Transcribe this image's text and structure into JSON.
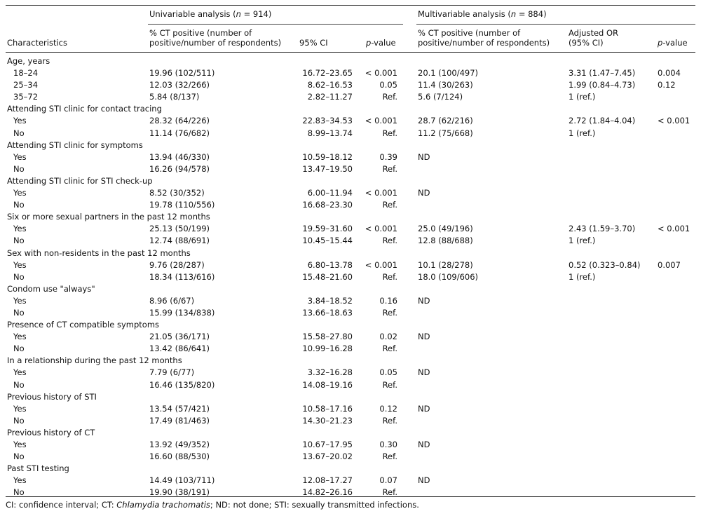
{
  "table": {
    "header": {
      "univariable_prefix": "Univariable analysis (",
      "univariable_n": "n",
      "univariable_suffix": " = 914)",
      "multivariable_prefix": "Multivariable analysis (",
      "multivariable_n": "n",
      "multivariable_suffix": " = 884)",
      "characteristics": "Characteristics",
      "u_pct_line1": "% CT positive (number of",
      "u_pct_line2": "positive/number of respondents)",
      "u_ci": "95% CI",
      "u_p_italic": "p",
      "u_p_rest": "-value",
      "m_pct_line1": "% CT positive (number of",
      "m_pct_line2": "positive/number of respondents)",
      "m_or_line1": "Adjusted OR",
      "m_or_line2": "(95% CI)",
      "m_p_italic": "p",
      "m_p_rest": "-value"
    },
    "rows": [
      {
        "label": "Age, years",
        "group": true
      },
      {
        "label": "18–24",
        "u_pct": "19.96 (102/511)",
        "u_ci": "16.72–23.65",
        "u_p": "< 0.001",
        "m_pct": "20.1 (100/497)",
        "m_or": "3.31 (1.47–7.45)",
        "m_p": "0.004"
      },
      {
        "label": "25–34",
        "u_pct": "12.03 (32/266)",
        "u_ci": "8.62–16.53",
        "u_p": "0.05",
        "m_pct": "11.4 (30/263)",
        "m_or": "1.99 (0.84–4.73)",
        "m_p": "0.12"
      },
      {
        "label": "35–72",
        "u_pct": "5.84 (8/137)",
        "u_ci": "2.82–11.27",
        "u_p": "Ref.",
        "m_pct": "5.6 (7/124)",
        "m_or": "1 (ref.)",
        "m_p": ""
      },
      {
        "label": "Attending STI clinic for contact tracing",
        "group": true
      },
      {
        "label": "Yes",
        "u_pct": "28.32 (64/226)",
        "u_ci": "22.83–34.53",
        "u_p": "< 0.001",
        "m_pct": "28.7 (62/216)",
        "m_or": "2.72 (1.84–4.04)",
        "m_p": "< 0.001"
      },
      {
        "label": "No",
        "u_pct": "11.14 (76/682)",
        "u_ci": "8.99–13.74",
        "u_p": "Ref.",
        "m_pct": "11.2 (75/668)",
        "m_or": "1 (ref.)",
        "m_p": ""
      },
      {
        "label": "Attending STI clinic for symptoms",
        "group": true
      },
      {
        "label": "Yes",
        "u_pct": "13.94 (46/330)",
        "u_ci": "10.59–18.12",
        "u_p": "0.39",
        "m_pct": "ND",
        "m_or": "",
        "m_p": ""
      },
      {
        "label": "No",
        "u_pct": "16.26 (94/578)",
        "u_ci": "13.47–19.50",
        "u_p": "Ref.",
        "m_pct": "",
        "m_or": "",
        "m_p": ""
      },
      {
        "label": "Attending STI clinic for STI check-up",
        "group": true
      },
      {
        "label": "Yes",
        "u_pct": "8.52 (30/352)",
        "u_ci": "6.00–11.94",
        "u_p": "< 0.001",
        "m_pct": "ND",
        "m_or": "",
        "m_p": ""
      },
      {
        "label": "No",
        "u_pct": "19.78 (110/556)",
        "u_ci": "16.68–23.30",
        "u_p": "Ref.",
        "m_pct": "",
        "m_or": "",
        "m_p": ""
      },
      {
        "label": "Six or more sexual partners in the past 12 months",
        "group": true
      },
      {
        "label": "Yes",
        "u_pct": "25.13 (50/199)",
        "u_ci": "19.59–31.60",
        "u_p": "< 0.001",
        "m_pct": "25.0 (49/196)",
        "m_or": "2.43 (1.59–3.70)",
        "m_p": "< 0.001"
      },
      {
        "label": "No",
        "u_pct": "12.74 (88/691)",
        "u_ci": "10.45–15.44",
        "u_p": "Ref.",
        "m_pct": "12.8 (88/688)",
        "m_or": "1 (ref.)",
        "m_p": ""
      },
      {
        "label": "Sex with non-residents in the past 12 months",
        "group": true
      },
      {
        "label": "Yes",
        "u_pct": "9.76 (28/287)",
        "u_ci": "6.80–13.78",
        "u_p": "< 0.001",
        "m_pct": "10.1 (28/278)",
        "m_or": "0.52 (0.323–0.84)",
        "m_p": "0.007"
      },
      {
        "label": "No",
        "u_pct": "18.34 (113/616)",
        "u_ci": "15.48–21.60",
        "u_p": "Ref.",
        "m_pct": "18.0 (109/606)",
        "m_or": "1 (ref.)",
        "m_p": ""
      },
      {
        "label": "Condom use \"always\"",
        "group": true
      },
      {
        "label": "Yes",
        "u_pct": "8.96 (6/67)",
        "u_ci": "3.84–18.52",
        "u_p": "0.16",
        "m_pct": "ND",
        "m_or": "",
        "m_p": ""
      },
      {
        "label": "No",
        "u_pct": "15.99 (134/838)",
        "u_ci": "13.66–18.63",
        "u_p": "Ref.",
        "m_pct": "",
        "m_or": "",
        "m_p": ""
      },
      {
        "label": "Presence of CT compatible symptoms",
        "group": true
      },
      {
        "label": "Yes",
        "u_pct": "21.05 (36/171)",
        "u_ci": "15.58–27.80",
        "u_p": "0.02",
        "m_pct": "ND",
        "m_or": "",
        "m_p": ""
      },
      {
        "label": "No",
        "u_pct": "13.42 (86/641)",
        "u_ci": "10.99–16.28",
        "u_p": "Ref.",
        "m_pct": "",
        "m_or": "",
        "m_p": ""
      },
      {
        "label": "In a relationship during the past 12 months",
        "group": true
      },
      {
        "label": "Yes",
        "u_pct": "7.79 (6/77)",
        "u_ci": "3.32–16.28",
        "u_p": "0.05",
        "m_pct": "ND",
        "m_or": "",
        "m_p": ""
      },
      {
        "label": "No",
        "u_pct": "16.46 (135/820)",
        "u_ci": "14.08–19.16",
        "u_p": "Ref.",
        "m_pct": "",
        "m_or": "",
        "m_p": ""
      },
      {
        "label": "Previous history of STI",
        "group": true
      },
      {
        "label": "Yes",
        "u_pct": "13.54 (57/421)",
        "u_ci": "10.58–17.16",
        "u_p": "0.12",
        "m_pct": "ND",
        "m_or": "",
        "m_p": ""
      },
      {
        "label": "No",
        "u_pct": "17.49 (81/463)",
        "u_ci": "14.30–21.23",
        "u_p": "Ref.",
        "m_pct": "",
        "m_or": "",
        "m_p": ""
      },
      {
        "label": "Previous history of CT",
        "group": true
      },
      {
        "label": "Yes",
        "u_pct": "13.92 (49/352)",
        "u_ci": "10.67–17.95",
        "u_p": "0.30",
        "m_pct": "ND",
        "m_or": "",
        "m_p": ""
      },
      {
        "label": "No",
        "u_pct": "16.60 (88/530)",
        "u_ci": "13.67–20.02",
        "u_p": "Ref.",
        "m_pct": "",
        "m_or": "",
        "m_p": ""
      },
      {
        "label": "Past STI testing",
        "group": true
      },
      {
        "label": "Yes",
        "u_pct": "14.49 (103/711)",
        "u_ci": "12.08–17.27",
        "u_p": "0.07",
        "m_pct": "ND",
        "m_or": "",
        "m_p": ""
      },
      {
        "label": "No",
        "u_pct": "19.90 (38/191)",
        "u_ci": "14.82–26.16",
        "u_p": "Ref.",
        "m_pct": "",
        "m_or": "",
        "m_p": ""
      }
    ]
  },
  "footnote": {
    "part1": "CI: confidence interval; CT: ",
    "italic": "Chlamydia trachomatis",
    "part2": "; ND: not done; STI: sexually transmitted infections."
  }
}
